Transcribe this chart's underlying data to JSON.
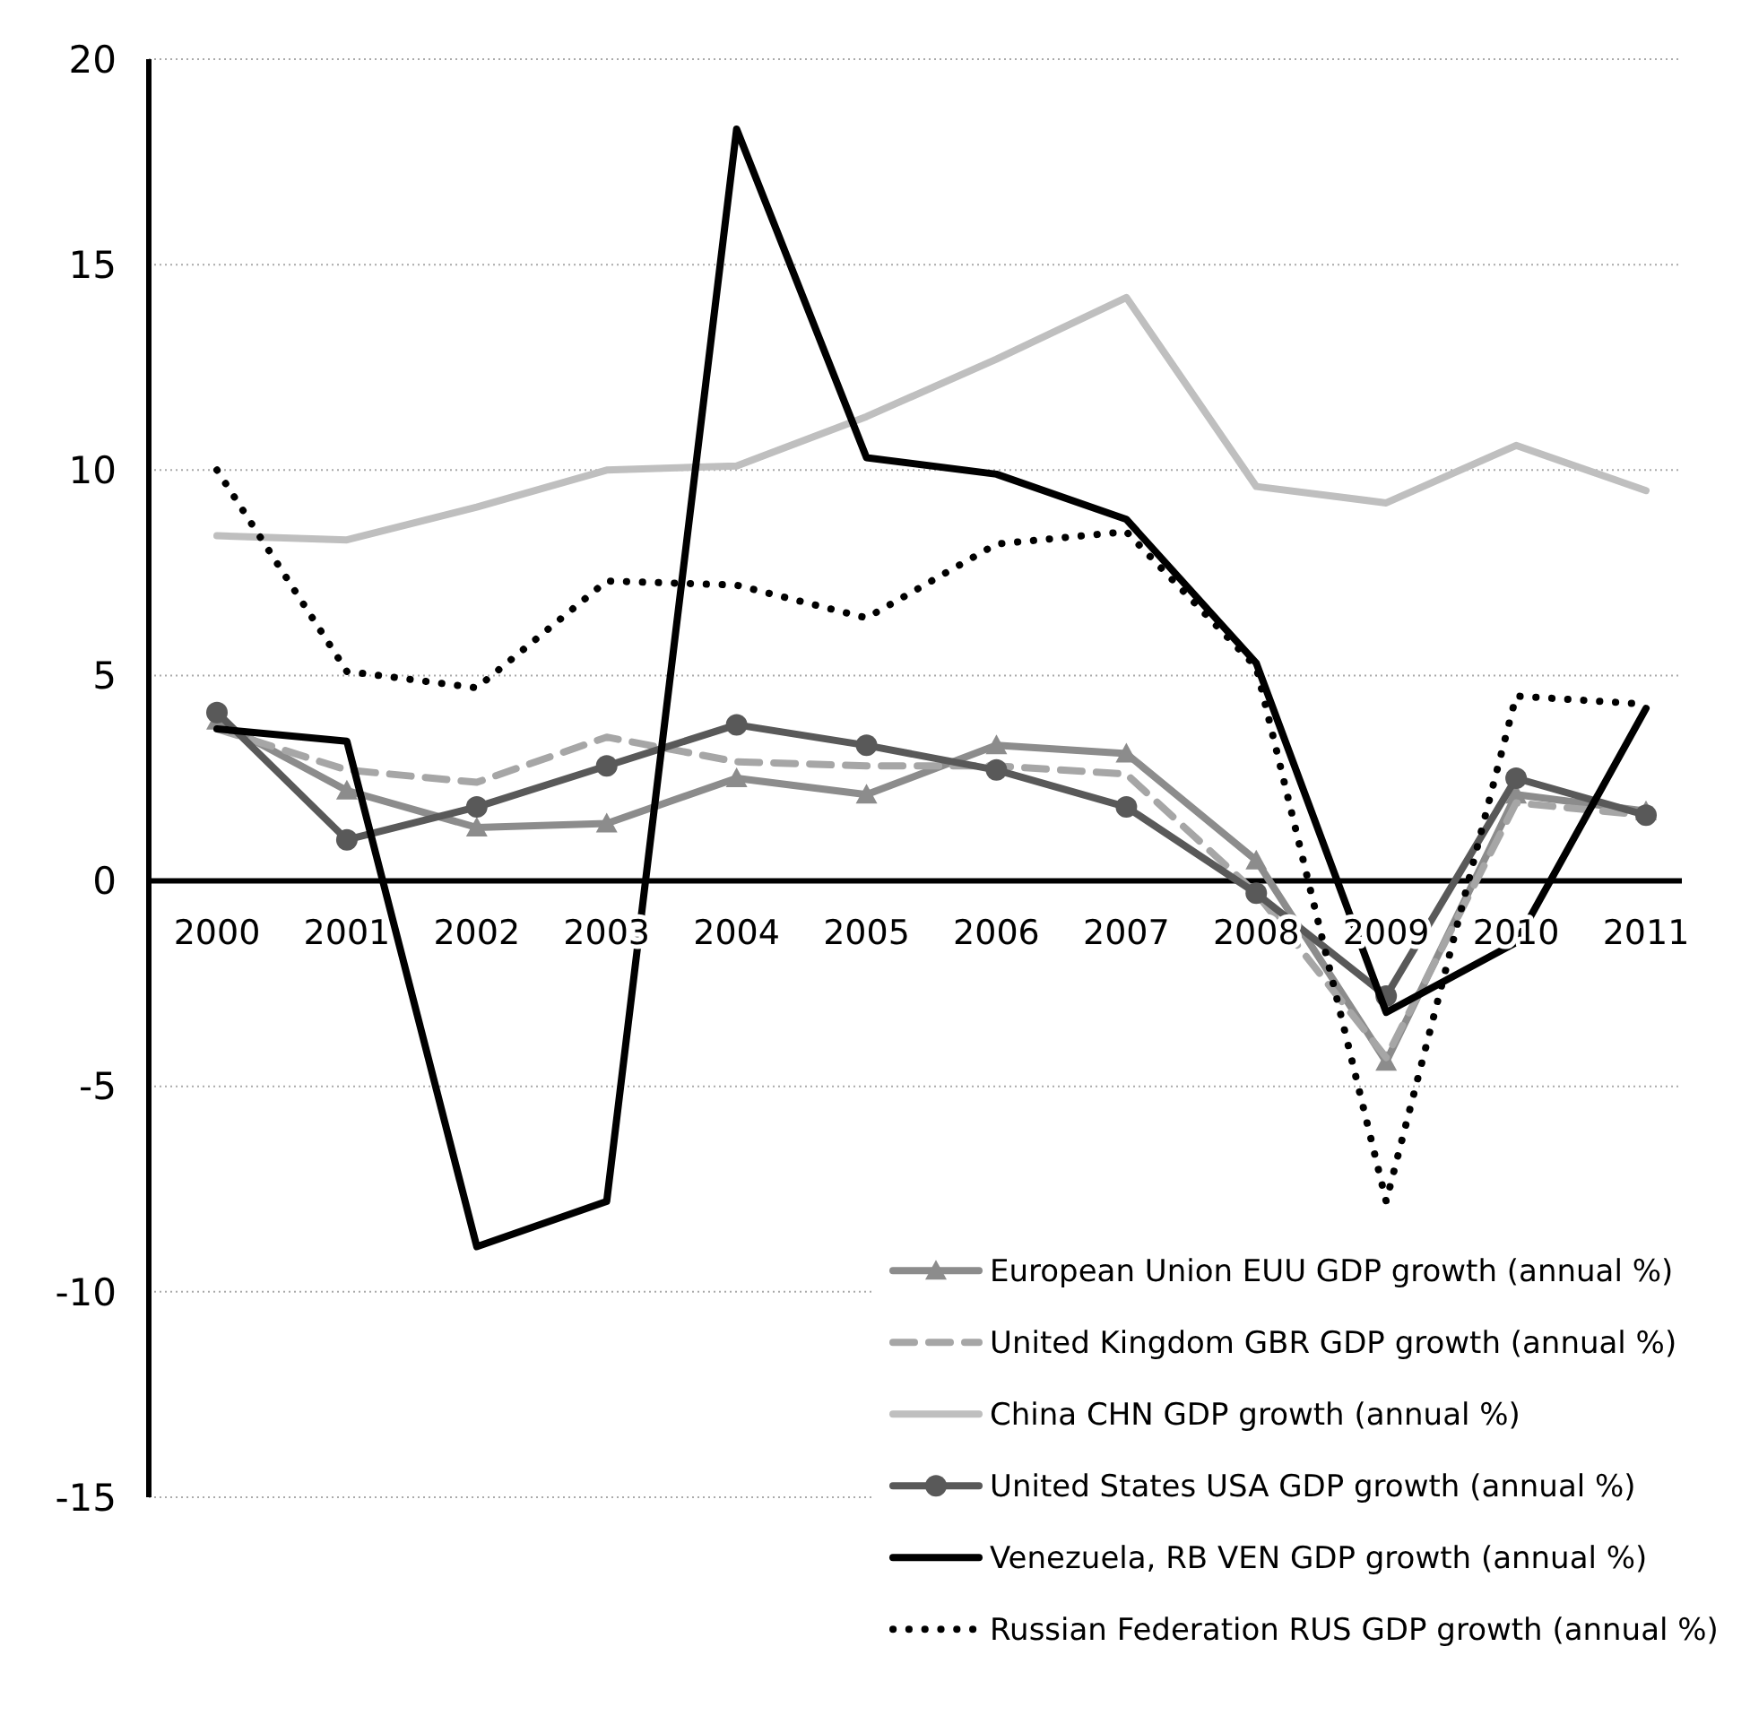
{
  "chart_data": {
    "type": "line",
    "categories": [
      "2000",
      "2001",
      "2002",
      "2003",
      "2004",
      "2005",
      "2006",
      "2007",
      "2008",
      "2009",
      "2010",
      "2011"
    ],
    "ylim": [
      -15,
      20
    ],
    "yticks": [
      -15,
      -10,
      -5,
      0,
      5,
      10,
      15,
      20
    ],
    "grid": "y",
    "legend": "bottom right",
    "series": [
      {
        "name": "European Union EUU GDP growth (annual %)",
        "color": "#8c8c8c",
        "marker": "triangle",
        "line_style": "solid",
        "values": [
          3.9,
          2.2,
          1.3,
          1.4,
          2.5,
          2.1,
          3.3,
          3.1,
          0.5,
          -4.4,
          2.1,
          1.7
        ]
      },
      {
        "name": "United Kingdom GBR GDP growth (annual %)",
        "color": "#a6a6a6",
        "marker": "none",
        "line_style": "dashed",
        "values": [
          3.7,
          2.7,
          2.4,
          3.5,
          2.9,
          2.8,
          2.8,
          2.6,
          -0.3,
          -4.3,
          1.9,
          1.6
        ]
      },
      {
        "name": "China CHN GDP growth (annual %)",
        "color": "#bfbfbf",
        "marker": "none",
        "line_style": "solid",
        "values": [
          8.4,
          8.3,
          9.1,
          10.0,
          10.1,
          11.3,
          12.7,
          14.2,
          9.6,
          9.2,
          10.6,
          9.5
        ]
      },
      {
        "name": "United States USA GDP growth (annual %)",
        "color": "#595959",
        "marker": "circle",
        "line_style": "solid",
        "values": [
          4.1,
          1.0,
          1.8,
          2.8,
          3.8,
          3.3,
          2.7,
          1.8,
          -0.3,
          -2.8,
          2.5,
          1.6
        ]
      },
      {
        "name": "Venezuela, RB VEN GDP growth (annual %)",
        "color": "#000000",
        "marker": "none",
        "line_style": "solid",
        "values": [
          3.7,
          3.4,
          -8.9,
          -7.8,
          18.3,
          10.3,
          9.9,
          8.8,
          5.3,
          -3.2,
          -1.5,
          4.2
        ]
      },
      {
        "name": "Russian Federation RUS GDP growth (annual %)",
        "color": "#000000",
        "marker": "none",
        "line_style": "dotted",
        "values": [
          10.0,
          5.1,
          4.7,
          7.3,
          7.2,
          6.4,
          8.2,
          8.5,
          5.2,
          -7.8,
          4.5,
          4.3
        ]
      }
    ]
  }
}
